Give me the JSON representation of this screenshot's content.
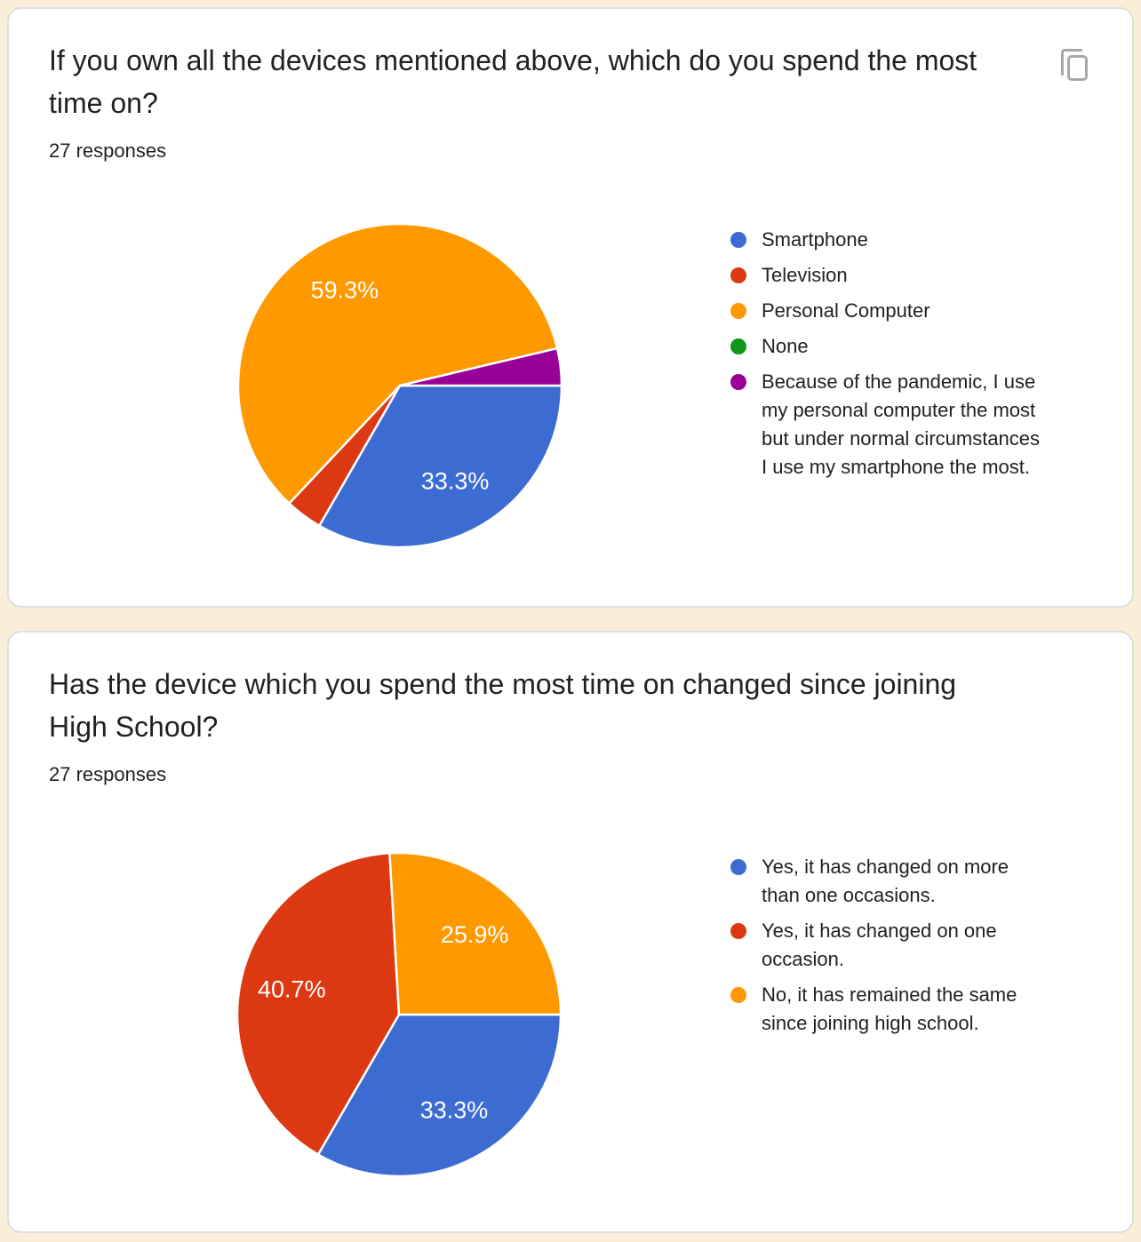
{
  "page": {
    "background_color": "#fbeed9",
    "card_background": "#ffffff",
    "card_border_color": "#dcdee1",
    "text_color": "#202124",
    "copy_icon_color": "#a6a9ac"
  },
  "chart_data": [
    {
      "type": "pie",
      "title": "If you own all the devices mentioned above, which do you spend the most\ntime on?",
      "responses_label": "27 responses",
      "start_angle_deg": 90,
      "legend_position": "right",
      "slices": [
        {
          "label": "Smartphone",
          "pct": 33.3,
          "pct_label": "33.3%",
          "color": "#3c6bd2"
        },
        {
          "label": "Television",
          "pct": 3.7,
          "pct_label": "",
          "color": "#dc3912"
        },
        {
          "label": "Personal Computer",
          "pct": 59.3,
          "pct_label": "59.3%",
          "color": "#ff9900"
        },
        {
          "label": "None",
          "pct": 0,
          "pct_label": "",
          "color": "#109618"
        },
        {
          "label": "Because of the pandemic, I use my personal computer the most but under normal circumstances I use my smartphone the most.",
          "pct": 3.7,
          "pct_label": "",
          "color": "#990099"
        }
      ],
      "legend": [
        {
          "color": "#3c6bd2",
          "text": "Smartphone"
        },
        {
          "color": "#dc3912",
          "text": "Television"
        },
        {
          "color": "#ff9900",
          "text": "Personal Computer"
        },
        {
          "color": "#109618",
          "text": "None"
        },
        {
          "color": "#990099",
          "text": "Because of the pandemic, I use\nmy personal computer the most\nbut under normal circumstances\nI use my smartphone the most."
        }
      ]
    },
    {
      "type": "pie",
      "title": "Has the device which you spend the most time on changed since joining\nHigh School?",
      "responses_label": "27 responses",
      "start_angle_deg": 90,
      "legend_position": "right",
      "slices": [
        {
          "label": "Yes, it has changed on more than one occasions.",
          "pct": 33.3,
          "pct_label": "33.3%",
          "color": "#3c6bd2"
        },
        {
          "label": "Yes, it has changed on one occasion.",
          "pct": 40.7,
          "pct_label": "40.7%",
          "color": "#dc3912"
        },
        {
          "label": "No, it has remained the same since joining high school.",
          "pct": 25.9,
          "pct_label": "25.9%",
          "color": "#ff9900"
        }
      ],
      "legend": [
        {
          "color": "#3c6bd2",
          "text": "Yes, it has changed on more\nthan one occasions."
        },
        {
          "color": "#dc3912",
          "text": "Yes, it has changed on one\noccasion."
        },
        {
          "color": "#ff9900",
          "text": "No, it has remained the same\nsince joining high school."
        }
      ]
    }
  ]
}
